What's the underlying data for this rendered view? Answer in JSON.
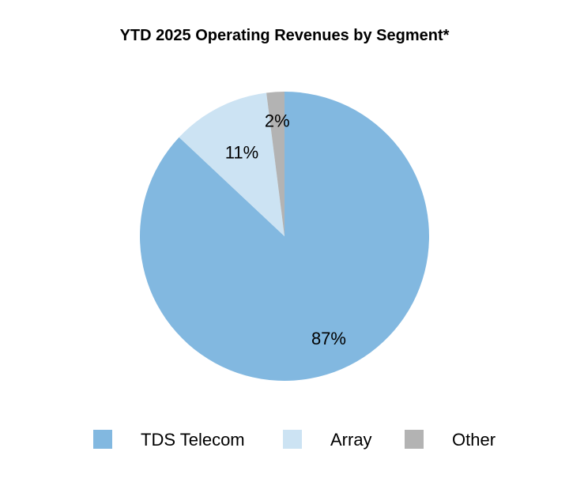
{
  "chart_data": {
    "type": "pie",
    "title": "YTD 2025 Operating Revenues by Segment*",
    "slices": [
      {
        "name": "TDS Telecom",
        "value": 87,
        "label": "87%",
        "color": "#82b8e0"
      },
      {
        "name": "Array",
        "value": 11,
        "label": "11%",
        "color": "#cce3f3"
      },
      {
        "name": "Other",
        "value": 2,
        "label": "2%",
        "color": "#b3b3b3"
      }
    ],
    "legend_position": "bottom",
    "start_angle": "12 o'clock",
    "direction": "clockwise"
  }
}
